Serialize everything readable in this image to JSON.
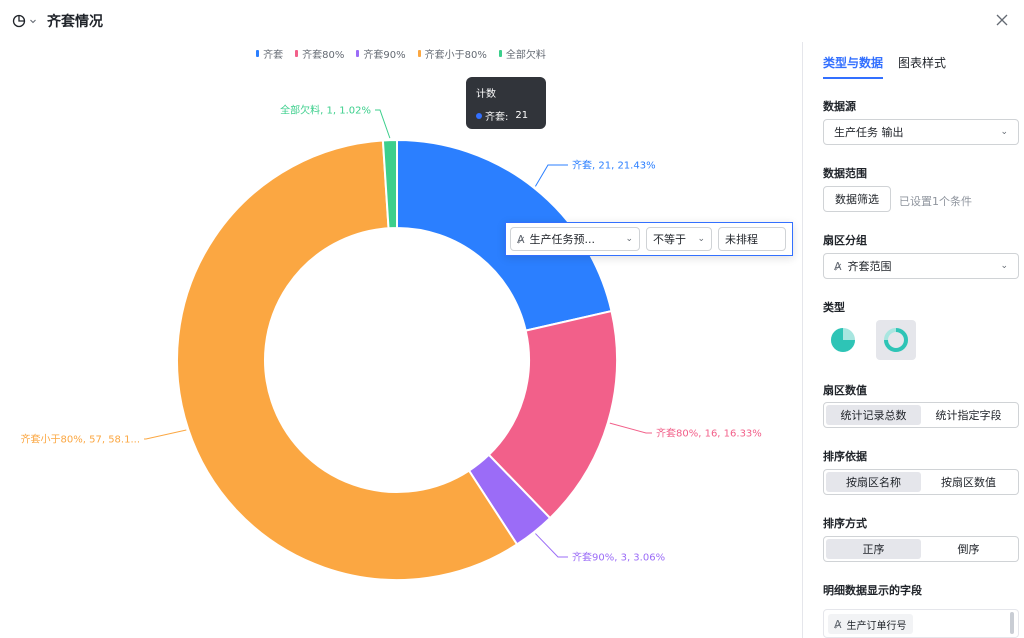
{
  "header": {
    "title": "齐套情况",
    "chart_type_icon": "pie-chart-icon",
    "close_icon": "close-icon"
  },
  "colors": {
    "accent": "#3370ff",
    "series": [
      "#2b7fff",
      "#f2608a",
      "#9b6cf7",
      "#fba742",
      "#3ccf8c"
    ]
  },
  "chart_data": {
    "type": "pie",
    "variant": "donut",
    "legend_position": "top-center",
    "legend": [
      "齐套",
      "齐套80%",
      "齐套90%",
      "齐套小于80%",
      "全部欠料"
    ],
    "slices": [
      {
        "name": "齐套",
        "value": 21,
        "percent": 21.43,
        "label": "齐套, 21, 21.43%",
        "color": "#2b7fff"
      },
      {
        "name": "齐套80%",
        "value": 16,
        "percent": 16.33,
        "label": "齐套80%, 16, 16.33%",
        "color": "#f2608a"
      },
      {
        "name": "齐套90%",
        "value": 3,
        "percent": 3.06,
        "label": "齐套90%, 3, 3.06%",
        "color": "#9b6cf7"
      },
      {
        "name": "齐套小于80%",
        "value": 57,
        "percent": 58.16,
        "label": "齐套小于80%, 57, 58.1...",
        "color": "#fba742"
      },
      {
        "name": "全部欠料",
        "value": 1,
        "percent": 1.02,
        "label": "全部欠料, 1, 1.02%",
        "color": "#3ccf8c"
      }
    ]
  },
  "tooltip": {
    "title": "计数",
    "series_name": "齐套:",
    "value": "21"
  },
  "filter": {
    "field": "生产任务预...",
    "operator": "不等于",
    "value": "未排程"
  },
  "panel": {
    "tabs": [
      {
        "label": "类型与数据",
        "active": true
      },
      {
        "label": "图表样式",
        "active": false
      }
    ],
    "data_source": {
      "label": "数据源",
      "value": "生产任务 输出"
    },
    "data_range": {
      "label": "数据范围",
      "button": "数据筛选",
      "hint": "已设置1个条件"
    },
    "group": {
      "label": "扇区分组",
      "value": "齐套范围"
    },
    "type": {
      "label": "类型",
      "options": [
        "pie-type-icon",
        "donut-type-icon"
      ],
      "selected": "donut-type-icon"
    },
    "value_mode": {
      "label": "扇区数值",
      "options": [
        "统计记录总数",
        "统计指定字段"
      ],
      "selected": 0
    },
    "sort_by": {
      "label": "排序依据",
      "options": [
        "按扇区名称",
        "按扇区数值"
      ],
      "selected": 0
    },
    "sort_order": {
      "label": "排序方式",
      "options": [
        "正序",
        "倒序"
      ],
      "selected": 0
    },
    "detail_fields": {
      "label": "明细数据显示的字段",
      "items": [
        "生产订单行号"
      ]
    }
  }
}
